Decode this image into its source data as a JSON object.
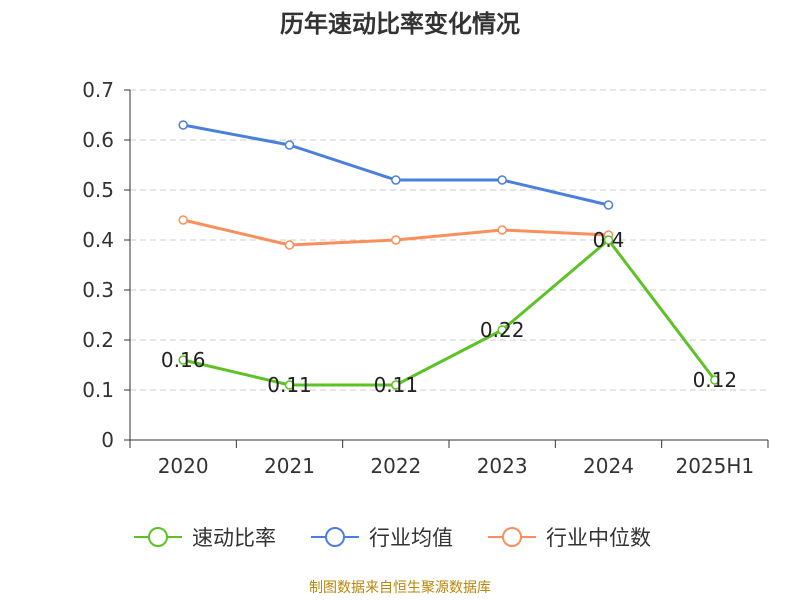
{
  "title": "历年速动比率变化情况",
  "source": "制图数据来自恒生聚源数据库",
  "chart_data": {
    "type": "line",
    "title": "历年速动比率变化情况",
    "categories": [
      "2020",
      "2021",
      "2022",
      "2023",
      "2024",
      "2025H1"
    ],
    "ylim": [
      0,
      0.7
    ],
    "yticks": [
      "0",
      "0.1",
      "0.2",
      "0.3",
      "0.4",
      "0.5",
      "0.6",
      "0.7"
    ],
    "grid": true,
    "legend_position": "bottom",
    "series": [
      {
        "name": "速动比率",
        "color": "#5cc225",
        "values": [
          0.16,
          0.11,
          0.11,
          0.22,
          0.4,
          0.12
        ],
        "labels": [
          "0.16",
          "0.11",
          "0.11",
          "0.22",
          "0.4",
          "0.12"
        ]
      },
      {
        "name": "行业均值",
        "color": "#4a7fdc",
        "values": [
          0.63,
          0.59,
          0.52,
          0.52,
          0.47,
          null
        ]
      },
      {
        "name": "行业中位数",
        "color": "#f98f5a",
        "values": [
          0.44,
          0.39,
          0.4,
          0.42,
          0.41,
          null
        ]
      }
    ]
  }
}
